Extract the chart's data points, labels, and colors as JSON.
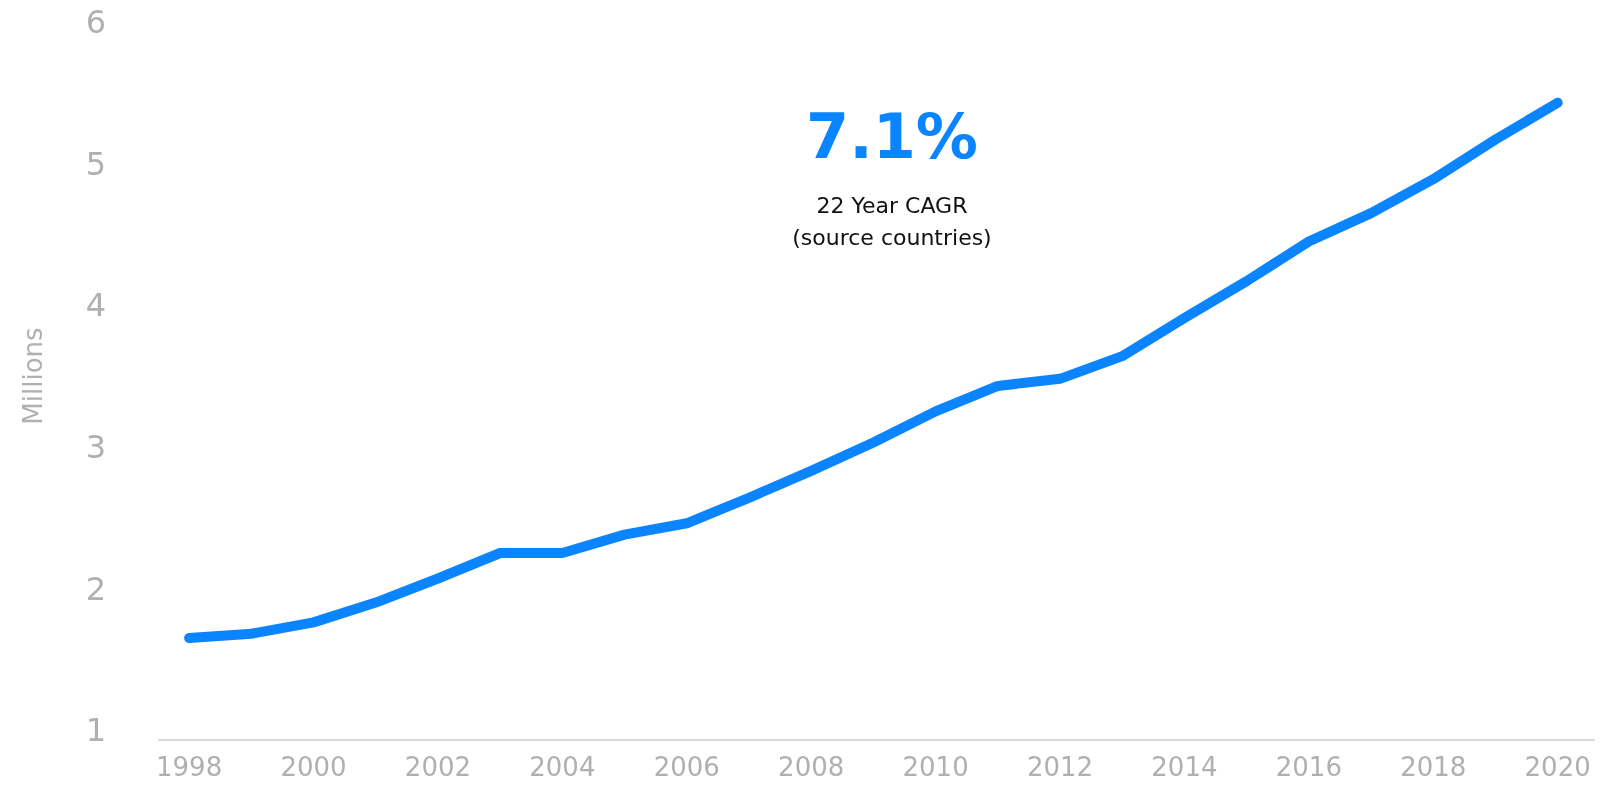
{
  "chart_data": {
    "type": "line",
    "ylabel": "Millions",
    "x": [
      1998,
      1999,
      2000,
      2001,
      2002,
      2003,
      2004,
      2005,
      2006,
      2007,
      2008,
      2009,
      2010,
      2011,
      2012,
      2013,
      2014,
      2015,
      2016,
      2017,
      2018,
      2019,
      2020
    ],
    "series": [
      {
        "color": "#0a84ff",
        "values": [
          1.65,
          1.68,
          1.76,
          1.9,
          2.07,
          2.25,
          2.25,
          2.38,
          2.46,
          2.64,
          2.83,
          3.03,
          3.25,
          3.43,
          3.48,
          3.64,
          3.91,
          4.17,
          4.45,
          4.65,
          4.89,
          5.17,
          5.43
        ]
      }
    ],
    "xlim": [
      1997.5,
      2020.6
    ],
    "xticks": [
      1998,
      2000,
      2002,
      2004,
      2006,
      2008,
      2010,
      2012,
      2014,
      2016,
      2018,
      2020
    ],
    "ylim": [
      1,
      6
    ],
    "yticks": [
      1,
      2,
      3,
      4,
      5,
      6
    ],
    "grid": false,
    "marker": "none",
    "line_style": "solid",
    "annotations": [
      "7.1%",
      "22 Year CAGR",
      "(source countries)"
    ]
  }
}
